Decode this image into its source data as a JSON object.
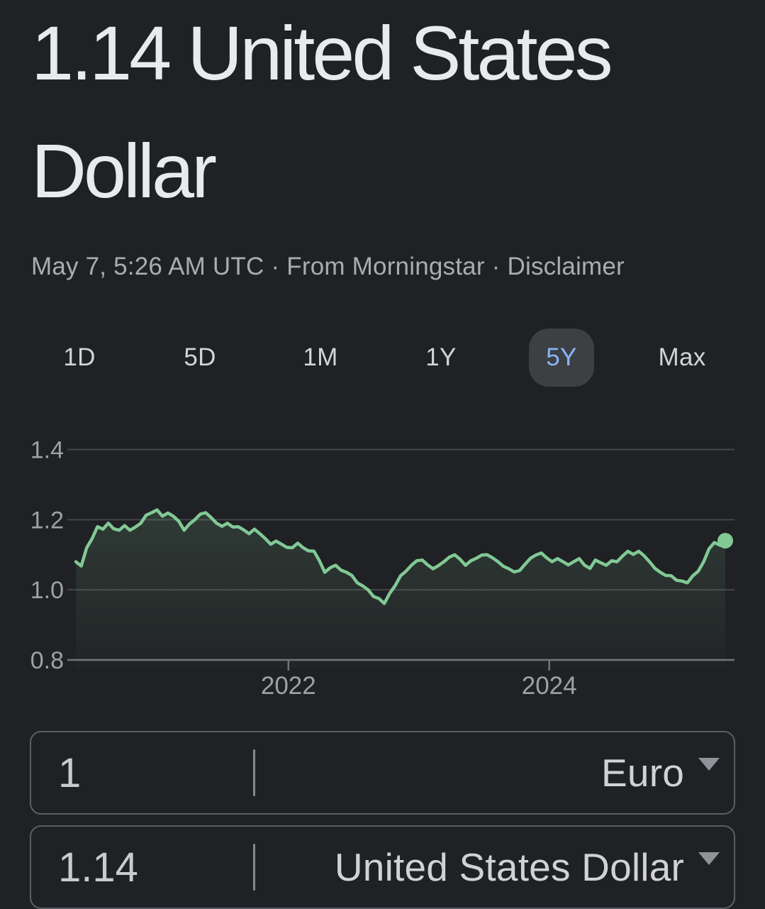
{
  "header": {
    "title": "1.14 United States Dollar",
    "timestamp": "May 7, 5:26 AM UTC",
    "separator": "·",
    "source": "From Morningstar",
    "disclaimer": "Disclaimer"
  },
  "tabs": {
    "items": [
      {
        "label": "1D",
        "selected": false
      },
      {
        "label": "5D",
        "selected": false
      },
      {
        "label": "1M",
        "selected": false
      },
      {
        "label": "1Y",
        "selected": false
      },
      {
        "label": "5Y",
        "selected": true
      },
      {
        "label": "Max",
        "selected": false
      }
    ]
  },
  "colors": {
    "background": "#202124",
    "title_text": "#e8eaed",
    "secondary_text": "#a9adb2",
    "accent_blue": "#8ab4f8",
    "pill_background": "#3c4043",
    "line_green": "#81c995",
    "grid_line": "#41464a",
    "axis_line": "#70757a",
    "axis_label": "#9ea1a5"
  },
  "chart_data": {
    "type": "area",
    "title": "EUR to USD exchange rate, 5 year range",
    "xlabel": "",
    "ylabel": "",
    "grid": true,
    "legend": "none",
    "x_start": 2020.37,
    "x_end": 2025.35,
    "x_ticks": [
      {
        "label": "2022",
        "value": 2022
      },
      {
        "label": "2024",
        "value": 2024
      }
    ],
    "y_ticks": [
      {
        "label": "0.8",
        "value": 0.8
      },
      {
        "label": "1.0",
        "value": 1.0
      },
      {
        "label": "1.2",
        "value": 1.2
      },
      {
        "label": "1.4",
        "value": 1.4
      }
    ],
    "ylim": [
      0.74,
      1.47
    ],
    "end_dot": true,
    "end_value": 1.14,
    "values": [
      1.08,
      1.068,
      1.12,
      1.146,
      1.18,
      1.173,
      1.19,
      1.174,
      1.17,
      1.183,
      1.17,
      1.179,
      1.19,
      1.213,
      1.22,
      1.228,
      1.21,
      1.219,
      1.21,
      1.196,
      1.17,
      1.188,
      1.2,
      1.216,
      1.22,
      1.206,
      1.19,
      1.181,
      1.19,
      1.179,
      1.18,
      1.171,
      1.16,
      1.173,
      1.16,
      1.146,
      1.13,
      1.139,
      1.13,
      1.121,
      1.12,
      1.133,
      1.12,
      1.111,
      1.11,
      1.083,
      1.05,
      1.063,
      1.07,
      1.056,
      1.05,
      1.041,
      1.02,
      1.011,
      1.0,
      0.981,
      0.975,
      0.961,
      0.99,
      1.012,
      1.04,
      1.053,
      1.07,
      1.083,
      1.085,
      1.071,
      1.06,
      1.069,
      1.08,
      1.093,
      1.1,
      1.087,
      1.07,
      1.083,
      1.09,
      1.099,
      1.1,
      1.091,
      1.08,
      1.067,
      1.06,
      1.051,
      1.055,
      1.073,
      1.09,
      1.099,
      1.105,
      1.091,
      1.08,
      1.089,
      1.08,
      1.071,
      1.08,
      1.089,
      1.07,
      1.061,
      1.085,
      1.077,
      1.07,
      1.083,
      1.08,
      1.096,
      1.11,
      1.101,
      1.11,
      1.097,
      1.08,
      1.061,
      1.05,
      1.041,
      1.04,
      1.027,
      1.025,
      1.02,
      1.04,
      1.053,
      1.08,
      1.117,
      1.135,
      1.127,
      1.14
    ]
  },
  "converter": {
    "rows": [
      {
        "amount": "1",
        "currency": "Euro"
      },
      {
        "amount": "1.14",
        "currency": "United States Dollar"
      }
    ]
  }
}
